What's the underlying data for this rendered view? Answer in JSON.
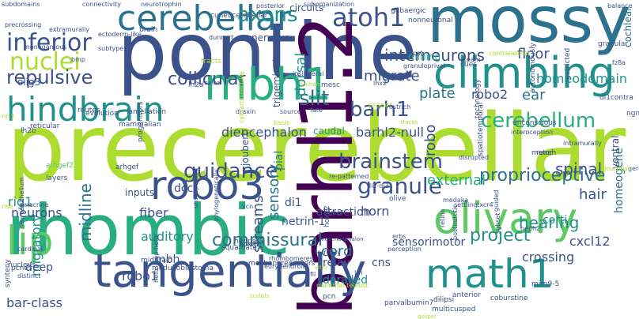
{
  "palette": {
    "dark_purple": "#440154",
    "indigo": "#3b528b",
    "blue": "#2c728e",
    "teal": "#21918c",
    "green": "#28ae80",
    "lime": "#5ec962",
    "yellow_green": "#addc30",
    "yellow": "#fde725"
  },
  "words": [
    {
      "text": "precerebellar",
      "size": 118,
      "color": "#addc30"
    },
    {
      "text": "pontine",
      "size": 100,
      "color": "#3b528b"
    },
    {
      "text": "rhombic",
      "size": 88,
      "color": "#28ae80"
    },
    {
      "text": "barhl1.2",
      "size": 92,
      "color": "#440154",
      "rotate": true
    },
    {
      "text": "mossy",
      "size": 80,
      "color": "#2c728e"
    },
    {
      "text": "tangentially",
      "size": 58,
      "color": "#3b528b"
    },
    {
      "text": "climbing",
      "size": 54,
      "color": "#21918c"
    },
    {
      "text": "cerebellar",
      "size": 44,
      "color": "#2c728e"
    },
    {
      "text": "olivary",
      "size": 54,
      "color": "#5ec962"
    },
    {
      "text": "mbh1",
      "size": 56,
      "color": "#28ae80"
    },
    {
      "text": "hindbrain",
      "size": 42,
      "color": "#21918c"
    },
    {
      "text": "math1",
      "size": 50,
      "color": "#21918c"
    },
    {
      "text": "robo3",
      "size": 50,
      "color": "#3b528b"
    },
    {
      "text": "lip",
      "size": 50,
      "color": "#5ec962"
    },
    {
      "text": "atoh1",
      "size": 32,
      "color": "#3b528b"
    },
    {
      "text": "inferior",
      "size": 30,
      "color": "#3b528b"
    },
    {
      "text": "nuclei",
      "size": 30,
      "color": "#addc30"
    },
    {
      "text": "axons",
      "size": 26,
      "color": "#21918c"
    },
    {
      "text": "brainstem",
      "size": 26,
      "color": "#3b528b"
    },
    {
      "text": "guidance",
      "size": 26,
      "color": "#3b528b"
    },
    {
      "text": "granule",
      "size": 28,
      "color": "#3b528b"
    },
    {
      "text": "repulsive",
      "size": 24,
      "color": "#3b528b"
    },
    {
      "text": "barh1",
      "size": 26,
      "color": "#3b528b"
    },
    {
      "text": "slit",
      "size": 26,
      "color": "#2c728e"
    },
    {
      "text": "cerebellum",
      "size": 26,
      "color": "#28ae80"
    },
    {
      "text": "commissural",
      "size": 22,
      "color": "#2c728e"
    },
    {
      "text": "collicular",
      "size": 22,
      "color": "#3b528b"
    },
    {
      "text": "interneurons",
      "size": 20,
      "color": "#3b528b"
    },
    {
      "text": "proprioceptive",
      "size": 22,
      "color": "#2c728e"
    },
    {
      "text": "project",
      "size": 22,
      "color": "#21918c"
    },
    {
      "text": "floor",
      "size": 18,
      "color": "#3b528b"
    },
    {
      "text": "diencephalon",
      "size": 16,
      "color": "#3b528b"
    },
    {
      "text": "migrate",
      "size": 18,
      "color": "#3b528b"
    },
    {
      "text": "midline",
      "size": 20,
      "color": "#2c728e",
      "rotate": true
    },
    {
      "text": "robo",
      "size": 18,
      "color": "#3b528b",
      "rotate": true
    },
    {
      "text": "dorsal",
      "size": 18,
      "color": "#21918c",
      "rotate": true
    },
    {
      "text": "sensory",
      "size": 18,
      "color": "#2c728e",
      "rotate": true
    },
    {
      "text": "migratory",
      "size": 16,
      "color": "#21918c",
      "rotate": true
    },
    {
      "text": "streams",
      "size": 18,
      "color": "#3b528b",
      "rotate": true
    },
    {
      "text": "homeodomain",
      "size": 16,
      "color": "#21918c"
    },
    {
      "text": "plate",
      "size": 18,
      "color": "#2c728e"
    },
    {
      "text": "robo2",
      "size": 16,
      "color": "#3b528b"
    },
    {
      "text": "ear",
      "size": 18,
      "color": "#2c728e"
    },
    {
      "text": "barhl2-null",
      "size": 16,
      "color": "#3b528b"
    },
    {
      "text": "external",
      "size": 18,
      "color": "#28ae80"
    },
    {
      "text": "hair",
      "size": 18,
      "color": "#3b528b"
    },
    {
      "text": "spinal",
      "size": 20,
      "color": "#3b528b"
    },
    {
      "text": "hearing",
      "size": 20,
      "color": "#21918c"
    },
    {
      "text": "fiber",
      "size": 16,
      "color": "#3b528b"
    },
    {
      "text": "auditory",
      "size": 16,
      "color": "#21918c"
    },
    {
      "text": "neurons",
      "size": 16,
      "color": "#3b528b"
    },
    {
      "text": "rig1",
      "size": 16,
      "color": "#21918c"
    },
    {
      "text": "robo1",
      "size": 16,
      "color": "#3b528b"
    },
    {
      "text": "mbh",
      "size": 14,
      "color": "#3b528b"
    },
    {
      "text": "bar-class",
      "size": 16,
      "color": "#3b528b"
    },
    {
      "text": "cord",
      "size": 18,
      "color": "#2c728e"
    },
    {
      "text": "horn",
      "size": 16,
      "color": "#3b528b"
    },
    {
      "text": "corti",
      "size": 14,
      "color": "#21918c"
    },
    {
      "text": "cxcl12",
      "size": 16,
      "color": "#3b528b"
    },
    {
      "text": "crossing",
      "size": 16,
      "color": "#3b528b"
    },
    {
      "text": "derailed",
      "size": 14,
      "color": "#21918c"
    },
    {
      "text": "homeogene",
      "size": 14,
      "color": "#2c728e",
      "rotate": true
    },
    {
      "text": "sensorimotor",
      "size": 14,
      "color": "#3b528b"
    },
    {
      "text": "di1",
      "size": 14,
      "color": "#3b528b"
    },
    {
      "text": "netrin-1",
      "size": 14,
      "color": "#3b528b"
    },
    {
      "text": "attraction",
      "size": 14,
      "color": "#3b528b"
    },
    {
      "text": "relay",
      "size": 14,
      "color": "#3b528b"
    },
    {
      "text": "cns",
      "size": 14,
      "color": "#3b528b"
    },
    {
      "text": "pial",
      "size": 14,
      "color": "#2c728e",
      "rotate": true
    },
    {
      "text": "deep",
      "size": 14,
      "color": "#3b528b"
    },
    {
      "text": "dcc",
      "size": 14,
      "color": "#3b528b"
    },
    {
      "text": "joubert",
      "size": 12,
      "color": "#3b528b",
      "rotate": true
    },
    {
      "text": "nervous",
      "size": 12,
      "color": "#3b528b"
    },
    {
      "text": "circuits",
      "size": 12,
      "color": "#3b528b"
    },
    {
      "text": "cochlear",
      "size": 12,
      "color": "#2c728e",
      "rotate": true
    },
    {
      "text": "caudal",
      "size": 12,
      "color": "#21918c"
    },
    {
      "text": "trigeminal",
      "size": 12,
      "color": "#3b528b",
      "rotate": true
    },
    {
      "text": "inputs",
      "size": 12,
      "color": "#3b528b"
    },
    {
      "text": "ventral",
      "size": 12,
      "color": "#3b528b",
      "rotate": true
    },
    {
      "text": "olig3",
      "size": 12,
      "color": "#3b528b"
    },
    {
      "text": "mining",
      "size": 12,
      "color": "#28ae80"
    },
    {
      "text": "mammalian",
      "size": 9,
      "color": "#3b528b"
    },
    {
      "text": "lamellation",
      "size": 9,
      "color": "#3b528b"
    },
    {
      "text": "reticular",
      "size": 9,
      "color": "#3b528b"
    },
    {
      "text": "arhgef2",
      "size": 9,
      "color": "#5ec962"
    },
    {
      "text": "arhgef",
      "size": 9,
      "color": "#3b528b"
    },
    {
      "text": "layers",
      "size": 9,
      "color": "#3b528b"
    },
    {
      "text": "progenitors",
      "size": 9,
      "color": "#3b528b",
      "rotate": true
    },
    {
      "text": "evolution",
      "size": 9,
      "color": "#3b528b"
    },
    {
      "text": "routes",
      "size": 9,
      "color": "#3b528b"
    },
    {
      "text": "synteny",
      "size": 9,
      "color": "#3b528b",
      "rotate": true
    },
    {
      "text": "nucleus",
      "size": 9,
      "color": "#3b528b"
    },
    {
      "text": "pcnes",
      "size": 9,
      "color": "#3b528b"
    },
    {
      "text": "distinct",
      "size": 8,
      "color": "#3b528b"
    },
    {
      "text": "cardinal",
      "size": 8,
      "color": "#3b528b"
    },
    {
      "text": "amacrine",
      "size": 8,
      "color": "#3b528b"
    },
    {
      "text": "rise",
      "size": 8,
      "color": "#addc30"
    },
    {
      "text": "neuroepithelium",
      "size": 8,
      "color": "#3b528b",
      "rotate": true
    },
    {
      "text": "helix-loop-helix",
      "size": 8,
      "color": "#3b528b",
      "rotate": true
    },
    {
      "text": "medulloblastoma",
      "size": 9,
      "color": "#3b528b"
    },
    {
      "text": "midbrain",
      "size": 9,
      "color": "#3b528b"
    },
    {
      "text": "mechanoreceptors",
      "size": 9,
      "color": "#3b528b"
    },
    {
      "text": "hgpps",
      "size": 9,
      "color": "#3b528b"
    },
    {
      "text": "squamate",
      "size": 9,
      "color": "#3b528b"
    },
    {
      "text": "hoxa2",
      "size": 9,
      "color": "#3b528b"
    },
    {
      "text": "pcn",
      "size": 9,
      "color": "#3b528b"
    },
    {
      "text": "parvalbumin7",
      "size": 9,
      "color": "#3b528b"
    },
    {
      "text": "multicusped",
      "size": 9,
      "color": "#3b528b"
    },
    {
      "text": "anterior",
      "size": 9,
      "color": "#3b528b"
    },
    {
      "text": "coburstine",
      "size": 9,
      "color": "#3b528b"
    },
    {
      "text": "dilipsi",
      "size": 9,
      "color": "#3b528b"
    },
    {
      "text": "mirn9-5",
      "size": 9,
      "color": "#3b528b"
    },
    {
      "text": "germinal",
      "size": 8,
      "color": "#3b528b"
    },
    {
      "text": "journeys",
      "size": 8,
      "color": "#addc30"
    },
    {
      "text": "spatiotemporal",
      "size": 9,
      "color": "#3b528b",
      "rotate": true
    },
    {
      "text": "reach",
      "size": 9,
      "color": "#3b528b"
    },
    {
      "text": "unconscious",
      "size": 9,
      "color": "#3b528b"
    },
    {
      "text": "technology",
      "size": 9,
      "color": "#3b528b",
      "rotate": true
    },
    {
      "text": "interoception",
      "size": 8,
      "color": "#3b528b"
    },
    {
      "text": "intramurally",
      "size": 8,
      "color": "#3b528b"
    },
    {
      "text": "ngn1",
      "size": 9,
      "color": "#3b528b"
    },
    {
      "text": "motor",
      "size": 9,
      "color": "#3b528b"
    },
    {
      "text": "di1contra",
      "size": 9,
      "color": "#3b528b"
    },
    {
      "text": "autonomously",
      "size": 9,
      "color": "#3b528b",
      "rotate": true
    },
    {
      "text": "restricted",
      "size": 9,
      "color": "#3b528b",
      "rotate": true
    },
    {
      "text": "fz8a",
      "size": 8,
      "color": "#3b528b"
    },
    {
      "text": "granular",
      "size": 9,
      "color": "#3b528b"
    },
    {
      "text": "balance",
      "size": 8,
      "color": "#3b528b"
    },
    {
      "text": "contralateral",
      "size": 8,
      "color": "#addc30"
    },
    {
      "text": "ateam",
      "size": 8,
      "color": "#3b528b"
    },
    {
      "text": "lost",
      "size": 8,
      "color": "#3b528b"
    },
    {
      "text": "gabaergic",
      "size": 9,
      "color": "#3b528b"
    },
    {
      "text": "brain",
      "size": 9,
      "color": "#3b528b"
    },
    {
      "text": "dunnart",
      "size": 8,
      "color": "#3b528b"
    },
    {
      "text": "posterior",
      "size": 8,
      "color": "#3b528b"
    },
    {
      "text": "nonneuronal",
      "size": 9,
      "color": "#3b528b"
    },
    {
      "text": "subdomains",
      "size": 8,
      "color": "#3b528b"
    },
    {
      "text": "connectivity",
      "size": 8,
      "color": "#3b528b"
    },
    {
      "text": "neurotrophin",
      "size": 8,
      "color": "#3b528b"
    },
    {
      "text": "suborganization",
      "size": 8,
      "color": "#3b528b"
    },
    {
      "text": "cuneocerebellar",
      "size": 9,
      "color": "#3b528b"
    },
    {
      "text": "precrossing",
      "size": 8,
      "color": "#3b528b"
    },
    {
      "text": "extramurally",
      "size": 8,
      "color": "#3b528b"
    },
    {
      "text": "ectoderm-like",
      "size": 8,
      "color": "#3b528b"
    },
    {
      "text": "monogamous",
      "size": 8,
      "color": "#3b528b"
    },
    {
      "text": "bmp",
      "size": 8,
      "color": "#3b528b"
    },
    {
      "text": "subtypes",
      "size": 8,
      "color": "#3b528b"
    },
    {
      "text": "tracts",
      "size": 9,
      "color": "#addc30"
    },
    {
      "text": "ipsilateral",
      "size": 8,
      "color": "#3b528b"
    },
    {
      "text": "mesc",
      "size": 9,
      "color": "#3b528b"
    },
    {
      "text": "proper",
      "size": 9,
      "color": "#addc30"
    },
    {
      "text": "lhx2",
      "size": 8,
      "color": "#3b528b"
    },
    {
      "text": "cues",
      "size": 9,
      "color": "#3b528b"
    },
    {
      "text": "granuloprival",
      "size": 8,
      "color": "#3b528b"
    },
    {
      "text": "draxin",
      "size": 8,
      "color": "#3b528b"
    },
    {
      "text": "fate",
      "size": 8,
      "color": "#3b528b"
    },
    {
      "text": "ostrich",
      "size": 8,
      "color": "#3b528b"
    },
    {
      "text": "nt-3",
      "size": 8,
      "color": "#addc30"
    },
    {
      "text": "lh2b",
      "size": 9,
      "color": "#3b528b"
    },
    {
      "text": "re-patterned",
      "size": 8,
      "color": "#3b528b"
    },
    {
      "text": "di2-di3",
      "size": 8,
      "color": "#3b528b"
    },
    {
      "text": "vcn",
      "size": 8,
      "color": "#3b528b"
    },
    {
      "text": "unsuspected",
      "size": 8,
      "color": "#3b528b",
      "rotate": true
    },
    {
      "text": "phylogenetically",
      "size": 8,
      "color": "#3b528b",
      "rotate": true
    },
    {
      "text": "olive",
      "size": 9,
      "color": "#3b528b"
    },
    {
      "text": "medaka",
      "size": 8,
      "color": "#3b528b"
    },
    {
      "text": "settling",
      "size": 8,
      "color": "#3b528b"
    },
    {
      "text": "cxcr4",
      "size": 8,
      "color": "#3b528b"
    },
    {
      "text": "neph2",
      "size": 8,
      "color": "#3b528b"
    },
    {
      "text": "disrupted",
      "size": 8,
      "color": "#3b528b"
    },
    {
      "text": "roof",
      "size": 8,
      "color": "#3b528b"
    },
    {
      "text": "mesencephalon",
      "size": 7,
      "color": "#3b528b"
    },
    {
      "text": "hoxb2",
      "size": 9,
      "color": "#3b528b",
      "rotate": true
    },
    {
      "text": "territory",
      "size": 8,
      "color": "#3b528b"
    },
    {
      "text": "eurydendroid",
      "size": 8,
      "color": "#3b528b"
    },
    {
      "text": "rhombomeres",
      "size": 8,
      "color": "#3b528b"
    },
    {
      "text": "perception",
      "size": 8,
      "color": "#3b528b"
    },
    {
      "text": "fil",
      "size": 8,
      "color": "#3b528b"
    },
    {
      "text": "lrn",
      "size": 8,
      "color": "#3b528b"
    },
    {
      "text": "mammal-teleost",
      "size": 8,
      "color": "#addc30"
    },
    {
      "text": "erbs",
      "size": 8,
      "color": "#3b528b"
    },
    {
      "text": "postmitotic",
      "size": 8,
      "color": "#3b528b",
      "rotate": true
    },
    {
      "text": "retina",
      "size": 8,
      "color": "#3b528b",
      "rotate": true
    },
    {
      "text": "guided",
      "size": 8,
      "color": "#3b528b",
      "rotate": true
    },
    {
      "text": "subset",
      "size": 8,
      "color": "#3b528b",
      "rotate": true
    },
    {
      "text": "source",
      "size": 8,
      "color": "#3b528b"
    },
    {
      "text": "basic",
      "size": 8,
      "color": "#addc30"
    },
    {
      "text": "cytoarchitecture",
      "size": 8,
      "color": "#addc30",
      "rotate": true
    },
    {
      "text": "mafba",
      "size": 7,
      "color": "#3b528b"
    },
    {
      "text": "lh2a",
      "size": 9,
      "color": "#3b528b"
    },
    {
      "text": "techan",
      "size": 7,
      "color": "#addc30"
    },
    {
      "text": "sculpts",
      "size": 7,
      "color": "#addc30"
    },
    {
      "text": "vitro",
      "size": 7,
      "color": "#addc30"
    },
    {
      "text": "gospel",
      "size": 7,
      "color": "#addc30"
    },
    {
      "text": "stacks",
      "size": 7,
      "color": "#addc30"
    }
  ]
}
